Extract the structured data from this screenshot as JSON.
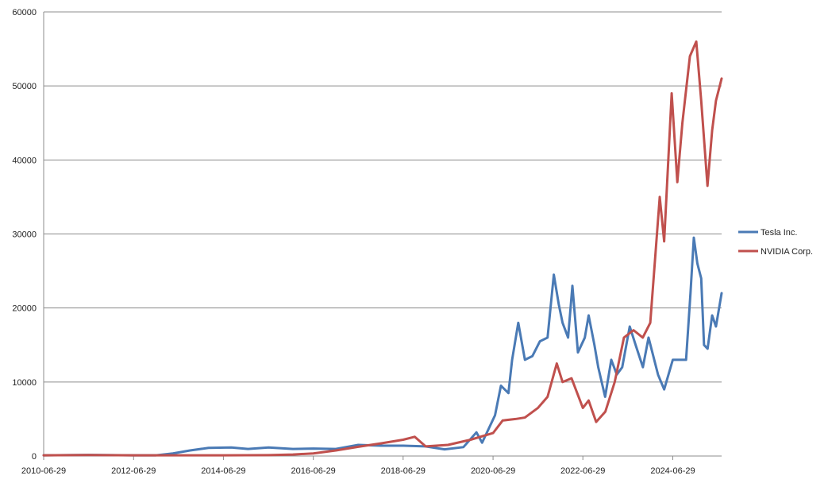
{
  "chart_data": {
    "type": "line",
    "title": "",
    "xlabel": "",
    "ylabel": "",
    "x_tick_labels": [
      "2010-06-29",
      "2012-06-29",
      "2014-06-29",
      "2016-06-29",
      "2018-06-29",
      "2020-06-29",
      "2022-06-29",
      "2024-06-29"
    ],
    "y_tick_labels": [
      "0",
      "10000",
      "20000",
      "30000",
      "40000",
      "50000",
      "60000"
    ],
    "ylim": [
      0,
      60000
    ],
    "xlim": [
      "2010-06-29",
      "2025-07-31"
    ],
    "grid": "horizontal",
    "legend_position": "right",
    "series": [
      {
        "name": "Tesla Inc.",
        "color": "#4a7ab5",
        "points": [
          [
            "2010-06-29",
            100
          ],
          [
            "2011-06-29",
            150
          ],
          [
            "2012-06-29",
            100
          ],
          [
            "2012-12-29",
            100
          ],
          [
            "2013-05-15",
            350
          ],
          [
            "2013-10-01",
            750
          ],
          [
            "2014-02-28",
            1100
          ],
          [
            "2014-09-01",
            1150
          ],
          [
            "2015-01-15",
            950
          ],
          [
            "2015-07-01",
            1150
          ],
          [
            "2016-01-15",
            950
          ],
          [
            "2016-06-29",
            1000
          ],
          [
            "2016-12-29",
            950
          ],
          [
            "2017-06-29",
            1500
          ],
          [
            "2017-12-29",
            1400
          ],
          [
            "2018-06-29",
            1400
          ],
          [
            "2018-12-29",
            1300
          ],
          [
            "2019-06-01",
            900
          ],
          [
            "2019-11-01",
            1200
          ],
          [
            "2020-02-15",
            3200
          ],
          [
            "2020-04-01",
            1800
          ],
          [
            "2020-07-15",
            5500
          ],
          [
            "2020-09-01",
            9500
          ],
          [
            "2020-11-01",
            8500
          ],
          [
            "2020-12-01",
            13000
          ],
          [
            "2021-01-20",
            18000
          ],
          [
            "2021-03-15",
            13000
          ],
          [
            "2021-05-15",
            13500
          ],
          [
            "2021-07-15",
            15500
          ],
          [
            "2021-09-15",
            16000
          ],
          [
            "2021-11-05",
            24500
          ],
          [
            "2021-12-15",
            20500
          ],
          [
            "2022-01-15",
            18000
          ],
          [
            "2022-03-01",
            16000
          ],
          [
            "2022-04-05",
            23000
          ],
          [
            "2022-05-20",
            14000
          ],
          [
            "2022-07-15",
            16000
          ],
          [
            "2022-08-15",
            19000
          ],
          [
            "2022-10-01",
            15000
          ],
          [
            "2022-11-01",
            12000
          ],
          [
            "2022-12-27",
            8000
          ],
          [
            "2023-02-15",
            13000
          ],
          [
            "2023-04-01",
            11000
          ],
          [
            "2023-05-15",
            12000
          ],
          [
            "2023-07-15",
            17500
          ],
          [
            "2023-09-01",
            15000
          ],
          [
            "2023-10-30",
            12000
          ],
          [
            "2023-12-15",
            16000
          ],
          [
            "2024-03-01",
            11000
          ],
          [
            "2024-04-20",
            9000
          ],
          [
            "2024-06-29",
            13000
          ],
          [
            "2024-09-01",
            13000
          ],
          [
            "2024-10-15",
            13000
          ],
          [
            "2024-11-20",
            22000
          ],
          [
            "2024-12-17",
            29500
          ],
          [
            "2025-01-15",
            26000
          ],
          [
            "2025-02-15",
            24000
          ],
          [
            "2025-03-10",
            15000
          ],
          [
            "2025-04-08",
            14500
          ],
          [
            "2025-05-15",
            19000
          ],
          [
            "2025-06-15",
            17500
          ],
          [
            "2025-07-31",
            22000
          ]
        ]
      },
      {
        "name": "NVIDIA Corp.",
        "color": "#c0504d",
        "points": [
          [
            "2010-06-29",
            100
          ],
          [
            "2011-06-29",
            130
          ],
          [
            "2012-06-29",
            100
          ],
          [
            "2013-06-29",
            100
          ],
          [
            "2014-06-29",
            100
          ],
          [
            "2015-06-29",
            120
          ],
          [
            "2016-01-15",
            200
          ],
          [
            "2016-06-29",
            350
          ],
          [
            "2016-12-29",
            750
          ],
          [
            "2017-06-29",
            1250
          ],
          [
            "2017-12-29",
            1700
          ],
          [
            "2018-06-29",
            2200
          ],
          [
            "2018-10-01",
            2600
          ],
          [
            "2018-12-29",
            1300
          ],
          [
            "2019-06-29",
            1500
          ],
          [
            "2019-12-29",
            2200
          ],
          [
            "2020-06-29",
            3100
          ],
          [
            "2020-09-15",
            4800
          ],
          [
            "2020-12-29",
            5000
          ],
          [
            "2021-03-15",
            5200
          ],
          [
            "2021-06-29",
            6500
          ],
          [
            "2021-09-15",
            8000
          ],
          [
            "2021-11-29",
            12500
          ],
          [
            "2022-01-15",
            10000
          ],
          [
            "2022-03-29",
            10500
          ],
          [
            "2022-06-29",
            6500
          ],
          [
            "2022-08-15",
            7500
          ],
          [
            "2022-10-15",
            4600
          ],
          [
            "2022-12-29",
            6000
          ],
          [
            "2023-03-15",
            10000
          ],
          [
            "2023-05-29",
            16000
          ],
          [
            "2023-08-15",
            17000
          ],
          [
            "2023-10-29",
            16000
          ],
          [
            "2023-12-29",
            18000
          ],
          [
            "2024-03-15",
            35000
          ],
          [
            "2024-04-20",
            29000
          ],
          [
            "2024-06-20",
            49000
          ],
          [
            "2024-08-05",
            37000
          ],
          [
            "2024-09-15",
            45000
          ],
          [
            "2024-11-15",
            54000
          ],
          [
            "2025-01-06",
            56000
          ],
          [
            "2025-02-15",
            48000
          ],
          [
            "2025-04-07",
            36500
          ],
          [
            "2025-05-15",
            44000
          ],
          [
            "2025-06-15",
            48000
          ],
          [
            "2025-07-31",
            51000
          ]
        ]
      }
    ]
  }
}
